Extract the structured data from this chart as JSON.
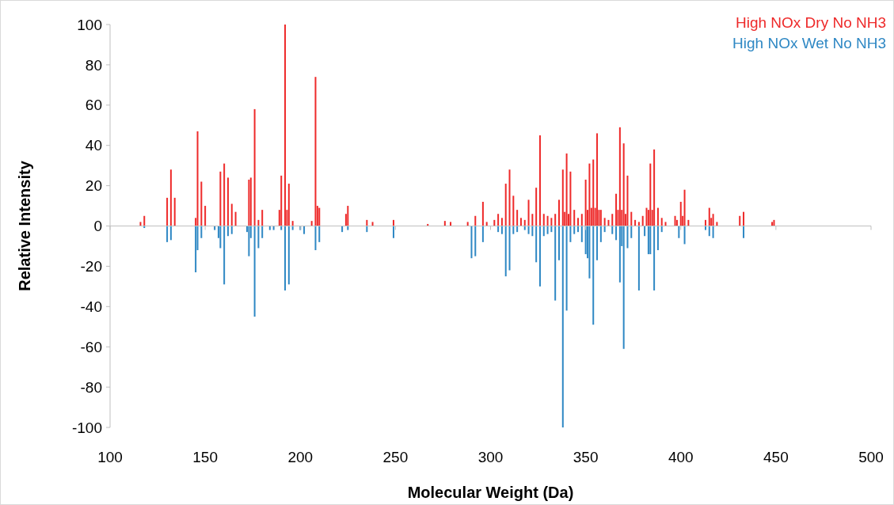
{
  "chart_data": {
    "type": "bar",
    "xlabel": "Molecular Weight (Da)",
    "ylabel": "Relative Intensity",
    "xlim": [
      100,
      500
    ],
    "xticks": [
      100,
      150,
      200,
      250,
      300,
      350,
      400,
      450,
      500
    ],
    "ylim": [
      -100,
      100
    ],
    "yticks": [
      -100,
      -80,
      -60,
      -40,
      -20,
      0,
      20,
      40,
      60,
      80,
      100
    ],
    "legend": "top right",
    "series": [
      {
        "name": "High NOx Dry No NH3",
        "color": "#ee2a2a",
        "x": [
          116,
          118,
          130,
          132,
          134,
          145,
          146,
          148,
          150,
          158,
          160,
          162,
          164,
          166,
          173,
          174,
          176,
          178,
          180,
          189,
          190,
          192,
          193,
          194,
          196,
          206,
          208,
          209,
          210,
          224,
          225,
          235,
          238,
          249,
          267,
          276,
          279,
          288,
          292,
          296,
          298,
          302,
          304,
          306,
          308,
          310,
          312,
          314,
          316,
          318,
          320,
          322,
          324,
          326,
          328,
          330,
          332,
          334,
          336,
          338,
          339,
          340,
          341,
          342,
          344,
          346,
          348,
          350,
          351,
          352,
          353,
          354,
          355,
          356,
          357,
          358,
          360,
          362,
          364,
          366,
          367,
          368,
          369,
          370,
          371,
          372,
          374,
          376,
          378,
          380,
          382,
          383,
          384,
          385,
          386,
          388,
          390,
          392,
          397,
          398,
          400,
          401,
          402,
          404,
          413,
          415,
          416,
          417,
          419,
          431,
          433,
          448,
          449
        ],
        "values": [
          2,
          5,
          14,
          28,
          14,
          4,
          47,
          22,
          10,
          27,
          31,
          24,
          11,
          7,
          23,
          24,
          58,
          3,
          8,
          8,
          25,
          100,
          8,
          21,
          2.5,
          2.5,
          74,
          10,
          9,
          6,
          10,
          3,
          2,
          3,
          1,
          2.5,
          2,
          2,
          5,
          12,
          2,
          3,
          6,
          4,
          21,
          28,
          15,
          8,
          4,
          3,
          13,
          6,
          19,
          45,
          6,
          5,
          4,
          6,
          13,
          28,
          7,
          36,
          6,
          27,
          8,
          4,
          6,
          23,
          8,
          31,
          9,
          33,
          9,
          46,
          8,
          8,
          4,
          3,
          6,
          16,
          8,
          49,
          8,
          41,
          6,
          25,
          7,
          3,
          2,
          5,
          9,
          8,
          31,
          8,
          38,
          9,
          4,
          2,
          5,
          3,
          12,
          5,
          18,
          3,
          3,
          9,
          4,
          6,
          2,
          5,
          7,
          2,
          3
        ]
      },
      {
        "name": "High NOx Wet No NH3",
        "color": "#2f88c4",
        "x": [
          118,
          130,
          132,
          145,
          146,
          148,
          155,
          157,
          158,
          160,
          162,
          164,
          172,
          173,
          174,
          176,
          178,
          180,
          184,
          186,
          190,
          192,
          194,
          196,
          200,
          202,
          208,
          210,
          222,
          225,
          235,
          249,
          290,
          292,
          296,
          304,
          306,
          308,
          310,
          312,
          314,
          318,
          320,
          322,
          324,
          326,
          328,
          330,
          332,
          334,
          336,
          338,
          340,
          342,
          344,
          346,
          348,
          350,
          351,
          352,
          354,
          356,
          358,
          360,
          364,
          366,
          368,
          369,
          370,
          372,
          374,
          378,
          381,
          383,
          384,
          386,
          388,
          390,
          399,
          402,
          413,
          415,
          417,
          433
        ],
        "values": [
          -1,
          -8,
          -7,
          -23,
          -12,
          -6,
          -2,
          -6,
          -11,
          -29,
          -5,
          -4,
          -3,
          -15,
          -6,
          -45,
          -11,
          -6,
          -2,
          -2,
          -2,
          -32,
          -29,
          -2,
          -2,
          -4,
          -12,
          -8,
          -3,
          -2,
          -3,
          -6,
          -16,
          -15,
          -8,
          -3,
          -4,
          -25,
          -22,
          -4,
          -3,
          -2,
          -4,
          -5,
          -18,
          -30,
          -5,
          -4,
          -3,
          -37,
          -17,
          -100,
          -42,
          -8,
          -4,
          -3,
          -8,
          -14,
          -16,
          -26,
          -49,
          -17,
          -8,
          -3,
          -4,
          -7,
          -28,
          -10,
          -61,
          -11,
          -6,
          -32,
          -5,
          -14,
          -14,
          -32,
          -12,
          -3,
          -6,
          -9,
          -2,
          -5,
          -6,
          -6
        ]
      }
    ]
  }
}
